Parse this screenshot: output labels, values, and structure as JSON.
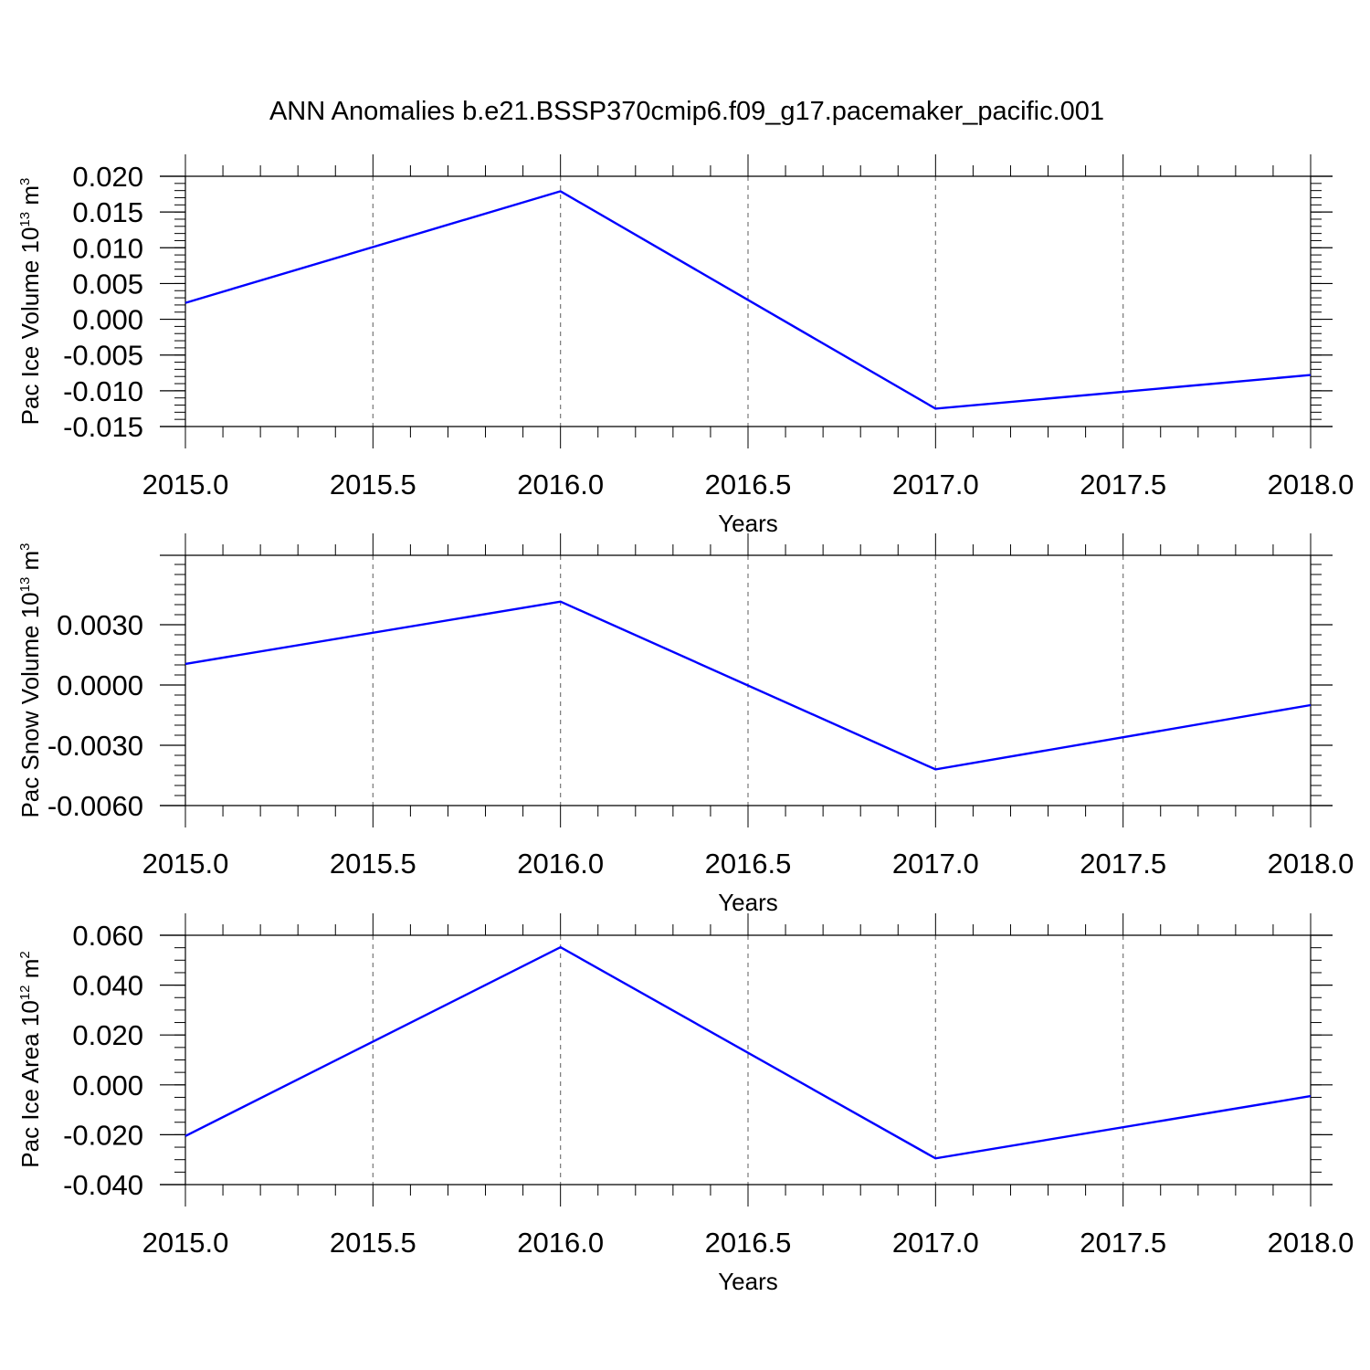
{
  "title": "ANN Anomalies b.e21.BSSP370cmip6.f09_g17.pacemaker_pacific.001",
  "line_color": "#0000ff",
  "chart_data": [
    {
      "type": "line",
      "ylabel": "Pac Ice Volume 10",
      "ylabel_exp": "13",
      "ylabel_unit": " m",
      "ylabel_unit_exp": "3",
      "xlabel": "Years",
      "x": [
        2015.0,
        2016.0,
        2017.0,
        2018.0
      ],
      "values": [
        0.0023,
        0.0179,
        -0.0125,
        -0.0078
      ],
      "xlim": [
        2015.0,
        2018.0
      ],
      "ylim": [
        -0.015,
        0.02
      ],
      "x_ticks": [
        "2015.0",
        "2015.5",
        "2016.0",
        "2016.5",
        "2017.0",
        "2017.5",
        "2018.0"
      ],
      "y_ticks": [
        "0.020",
        "0.015",
        "0.010",
        "0.005",
        "0.000",
        "-0.005",
        "-0.010",
        "-0.015"
      ],
      "y_tick_values": [
        0.02,
        0.015,
        0.01,
        0.005,
        0.0,
        -0.005,
        -0.01,
        -0.015
      ],
      "y_minor": 0.001,
      "grid": "vertical dashed at major x ticks"
    },
    {
      "type": "line",
      "ylabel": "Pac Snow Volume 10",
      "ylabel_exp": "13",
      "ylabel_unit": " m",
      "ylabel_unit_exp": "3",
      "xlabel": "Years",
      "x": [
        2015.0,
        2016.0,
        2017.0,
        2018.0
      ],
      "values": [
        0.00105,
        0.00415,
        -0.0042,
        -0.001
      ],
      "xlim": [
        2015.0,
        2018.0
      ],
      "ylim": [
        -0.006,
        0.006
      ],
      "x_ticks": [
        "2015.0",
        "2015.5",
        "2016.0",
        "2016.5",
        "2017.0",
        "2017.5",
        "2018.0"
      ],
      "y_ticks": [
        "0.0030",
        "0.0000",
        "-0.0030",
        "-0.0060"
      ],
      "y_tick_values": [
        0.003,
        0.0,
        -0.003,
        -0.006
      ],
      "y_minor": 0.0005,
      "grid": "vertical dashed at major x ticks"
    },
    {
      "type": "line",
      "ylabel": "Pac Ice Area 10",
      "ylabel_exp": "12",
      "ylabel_unit": " m",
      "ylabel_unit_exp": "2",
      "xlabel": "Years",
      "x": [
        2015.0,
        2016.0,
        2017.0,
        2018.0
      ],
      "values": [
        -0.0205,
        0.0552,
        -0.0295,
        -0.0045
      ],
      "xlim": [
        2015.0,
        2018.0
      ],
      "ylim": [
        -0.04,
        0.06
      ],
      "x_ticks": [
        "2015.0",
        "2015.5",
        "2016.0",
        "2016.5",
        "2017.0",
        "2017.5",
        "2018.0"
      ],
      "y_ticks": [
        "0.060",
        "0.040",
        "0.020",
        "0.000",
        "-0.020",
        "-0.040"
      ],
      "y_tick_values": [
        0.06,
        0.04,
        0.02,
        0.0,
        -0.02,
        -0.04
      ],
      "y_minor": 0.005,
      "grid": "vertical dashed at major x ticks"
    }
  ]
}
